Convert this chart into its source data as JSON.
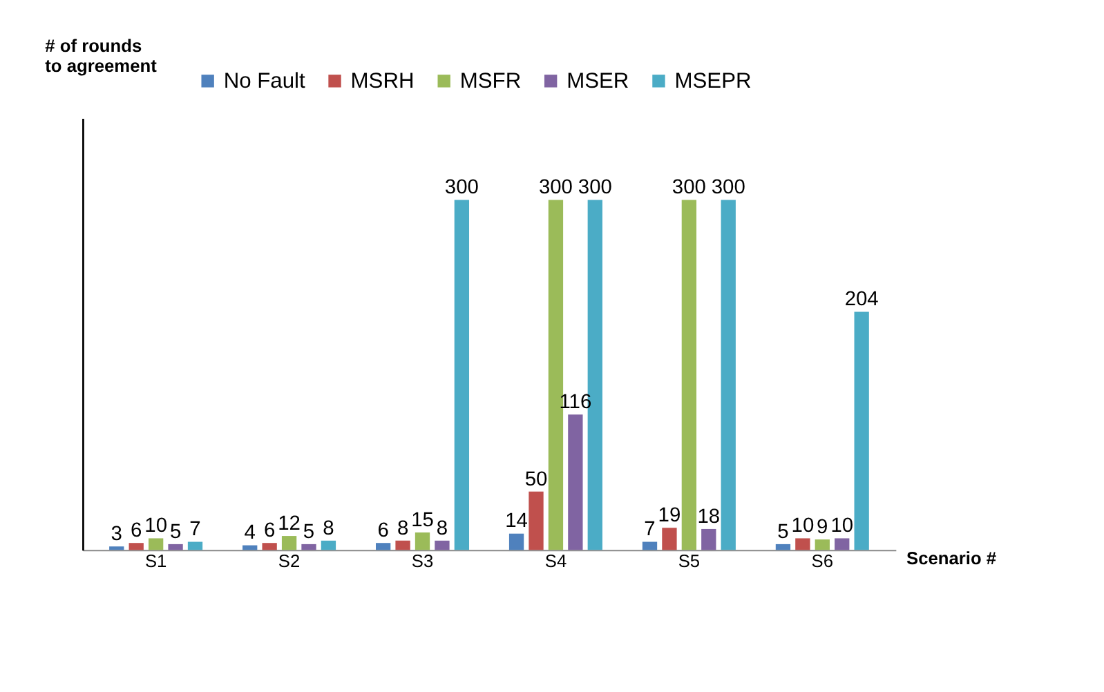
{
  "chart_data": {
    "type": "bar",
    "ylabel": "# of rounds\nto agreement",
    "xlabel": "Scenario #",
    "categories": [
      "S1",
      "S2",
      "S3",
      "S4",
      "S5",
      "S6"
    ],
    "series": [
      {
        "name": "No Fault",
        "color": "#4f81bd",
        "values": [
          3,
          4,
          6,
          14,
          7,
          5
        ]
      },
      {
        "name": "MSRH",
        "color": "#c0504d",
        "values": [
          6,
          6,
          8,
          50,
          19,
          10
        ]
      },
      {
        "name": "MSFR",
        "color": "#9bbb59",
        "values": [
          10,
          12,
          15,
          300,
          300,
          9
        ]
      },
      {
        "name": "MSER",
        "color": "#8064a2",
        "values": [
          5,
          5,
          8,
          116,
          18,
          10
        ]
      },
      {
        "name": "MSEPR",
        "color": "#4bacc6",
        "values": [
          7,
          8,
          300,
          300,
          300,
          204
        ]
      }
    ],
    "ylim": [
      0,
      370
    ],
    "data_labels": true,
    "legend": "top",
    "grid": false
  }
}
